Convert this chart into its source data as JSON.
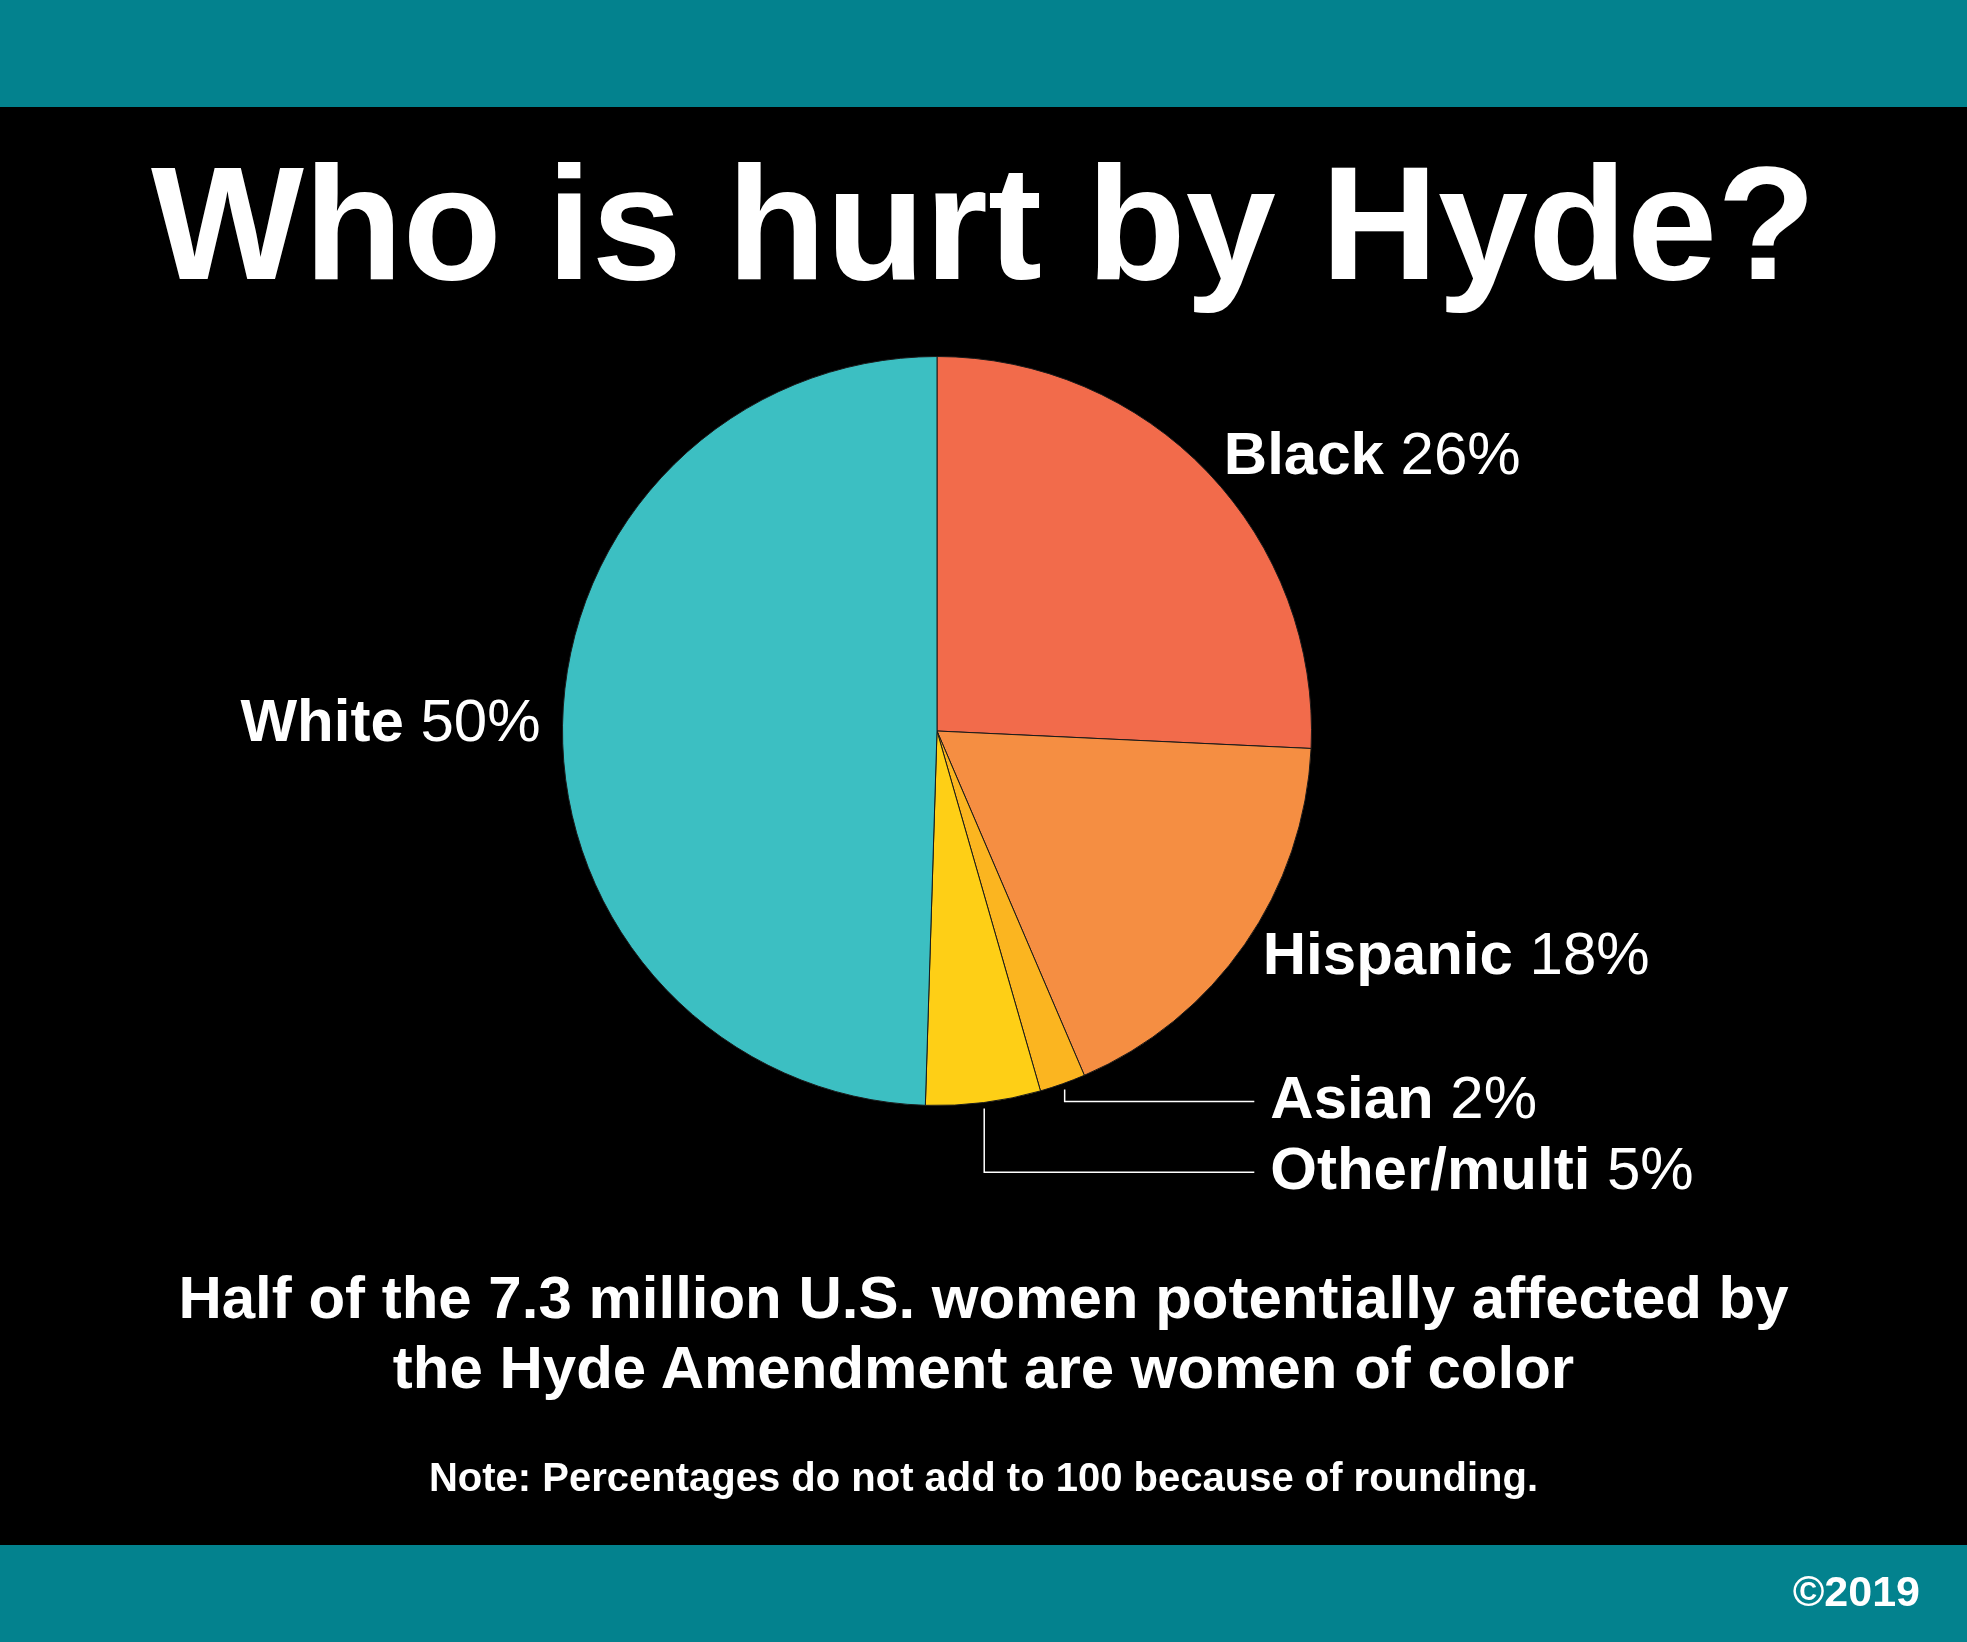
{
  "chart_data": {
    "type": "pie",
    "title": "Who is hurt by Hyde?",
    "subtitle": "Half of the 7.3 million U.S. women potentially affected by the Hyde Amendment are women of color",
    "categories": [
      "Black",
      "Hispanic",
      "Asian",
      "Other/multi",
      "White"
    ],
    "values": [
      26,
      18,
      2,
      5,
      50
    ],
    "colors": [
      "#f26b4b",
      "#f58e42",
      "#fbb520",
      "#fecf16",
      "#3cbfc2"
    ],
    "value_labels": [
      "26%",
      "18%",
      "2%",
      "5%",
      "50%"
    ],
    "annotations": [
      "Note: Percentages do not add to 100 because of rounding.",
      "©2019"
    ]
  }
}
